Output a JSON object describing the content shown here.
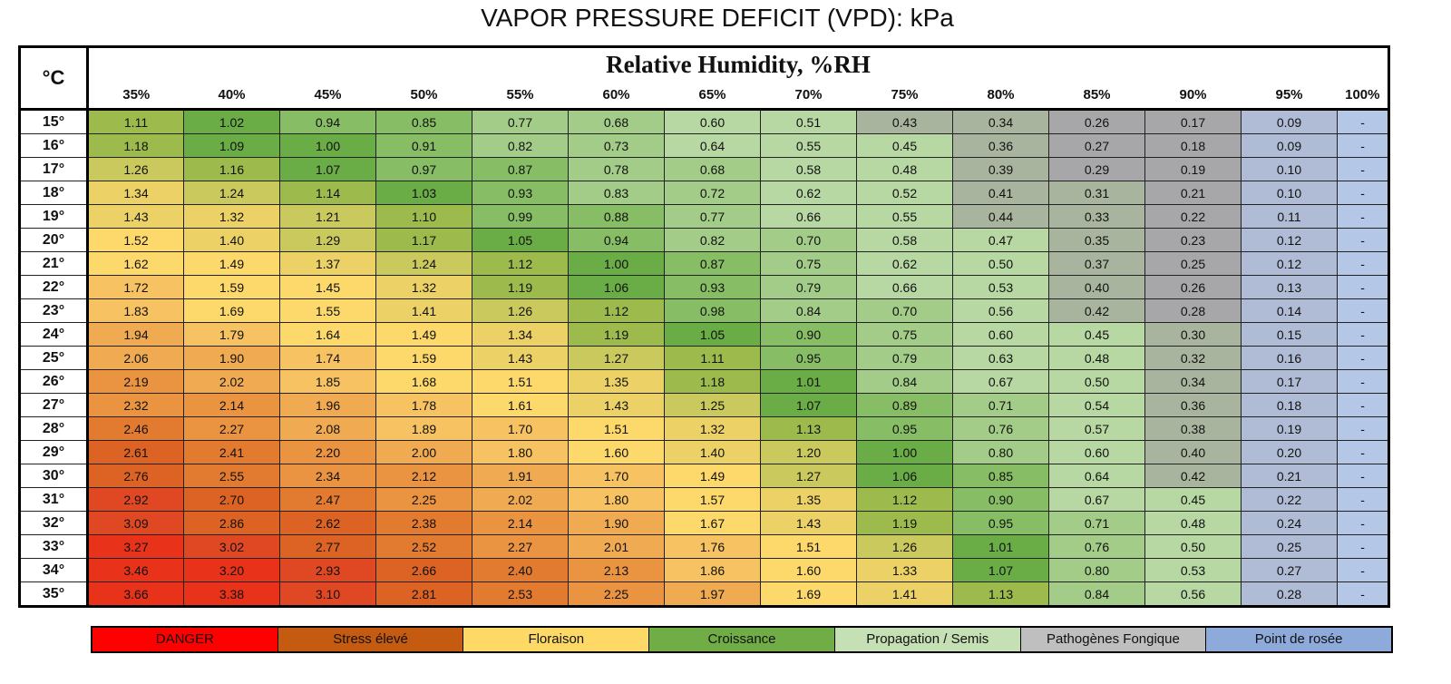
{
  "title": "VAPOR PRESSURE DEFICIT (VPD): kPa",
  "table": {
    "corner": "°C",
    "header": "Relative Humidity, %RH",
    "columns": [
      "35%",
      "40%",
      "45%",
      "50%",
      "55%",
      "60%",
      "65%",
      "70%",
      "75%",
      "80%",
      "85%",
      "90%",
      "95%",
      "100%"
    ],
    "rows": [
      {
        "label": "15°",
        "cells": [
          "1.11",
          "1.02",
          "0.94",
          "0.85",
          "0.77",
          "0.68",
          "0.60",
          "0.51",
          "0.43",
          "0.34",
          "0.26",
          "0.17",
          "0.09",
          "-"
        ],
        "colors": [
          "#9dbb4d",
          "#6aac46",
          "#87bd64",
          "#87bd64",
          "#a2cc88",
          "#a2cc88",
          "#b7d7a3",
          "#b7d7a3",
          "#a9b49e",
          "#a9b49e",
          "#a7a7aa",
          "#a7a7aa",
          "#b0bcd5",
          "#b4c7e7"
        ]
      },
      {
        "label": "16°",
        "cells": [
          "1.18",
          "1.09",
          "1.00",
          "0.91",
          "0.82",
          "0.73",
          "0.64",
          "0.55",
          "0.45",
          "0.36",
          "0.27",
          "0.18",
          "0.09",
          "-"
        ],
        "colors": [
          "#9dbb4d",
          "#6aac46",
          "#6aac46",
          "#87bd64",
          "#a2cc88",
          "#a2cc88",
          "#b7d7a3",
          "#b7d7a3",
          "#b7d7a3",
          "#a9b49e",
          "#a7a7aa",
          "#a7a7aa",
          "#b0bcd5",
          "#b4c7e7"
        ]
      },
      {
        "label": "17°",
        "cells": [
          "1.26",
          "1.16",
          "1.07",
          "0.97",
          "0.87",
          "0.78",
          "0.68",
          "0.58",
          "0.48",
          "0.39",
          "0.29",
          "0.19",
          "0.10",
          "-"
        ],
        "colors": [
          "#cac95d",
          "#9dbb4d",
          "#6aac46",
          "#87bd64",
          "#87bd64",
          "#a2cc88",
          "#a2cc88",
          "#b7d7a3",
          "#b7d7a3",
          "#a9b49e",
          "#a7a7aa",
          "#a7a7aa",
          "#b0bcd5",
          "#b4c7e7"
        ]
      },
      {
        "label": "18°",
        "cells": [
          "1.34",
          "1.24",
          "1.14",
          "1.03",
          "0.93",
          "0.83",
          "0.72",
          "0.62",
          "0.52",
          "0.41",
          "0.31",
          "0.21",
          "0.10",
          "-"
        ],
        "colors": [
          "#ecd266",
          "#cac95d",
          "#9dbb4d",
          "#6aac46",
          "#87bd64",
          "#a2cc88",
          "#a2cc88",
          "#b7d7a3",
          "#b7d7a3",
          "#a9b49e",
          "#a9b49e",
          "#a7a7aa",
          "#b0bcd5",
          "#b4c7e7"
        ]
      },
      {
        "label": "19°",
        "cells": [
          "1.43",
          "1.32",
          "1.21",
          "1.10",
          "0.99",
          "0.88",
          "0.77",
          "0.66",
          "0.55",
          "0.44",
          "0.33",
          "0.22",
          "0.11",
          "-"
        ],
        "colors": [
          "#ecd266",
          "#ecd266",
          "#cac95d",
          "#9dbb4d",
          "#87bd64",
          "#87bd64",
          "#a2cc88",
          "#b7d7a3",
          "#b7d7a3",
          "#a9b49e",
          "#a9b49e",
          "#a7a7aa",
          "#b0bcd5",
          "#b4c7e7"
        ]
      },
      {
        "label": "20°",
        "cells": [
          "1.52",
          "1.40",
          "1.29",
          "1.17",
          "1.05",
          "0.94",
          "0.82",
          "0.70",
          "0.58",
          "0.47",
          "0.35",
          "0.23",
          "0.12",
          "-"
        ],
        "colors": [
          "#fdd96c",
          "#ecd266",
          "#cac95d",
          "#9dbb4d",
          "#6aac46",
          "#87bd64",
          "#a2cc88",
          "#a2cc88",
          "#b7d7a3",
          "#b7d7a3",
          "#a9b49e",
          "#a7a7aa",
          "#b0bcd5",
          "#b4c7e7"
        ]
      },
      {
        "label": "21°",
        "cells": [
          "1.62",
          "1.49",
          "1.37",
          "1.24",
          "1.12",
          "1.00",
          "0.87",
          "0.75",
          "0.62",
          "0.50",
          "0.37",
          "0.25",
          "0.12",
          "-"
        ],
        "colors": [
          "#fdd96c",
          "#fdd96c",
          "#ecd266",
          "#cac95d",
          "#9dbb4d",
          "#6aac46",
          "#87bd64",
          "#a2cc88",
          "#b7d7a3",
          "#b7d7a3",
          "#a9b49e",
          "#a7a7aa",
          "#b0bcd5",
          "#b4c7e7"
        ]
      },
      {
        "label": "22°",
        "cells": [
          "1.72",
          "1.59",
          "1.45",
          "1.32",
          "1.19",
          "1.06",
          "0.93",
          "0.79",
          "0.66",
          "0.53",
          "0.40",
          "0.26",
          "0.13",
          "-"
        ],
        "colors": [
          "#f6c262",
          "#fdd96c",
          "#fdd96c",
          "#ecd266",
          "#9dbb4d",
          "#6aac46",
          "#87bd64",
          "#a2cc88",
          "#b7d7a3",
          "#b7d7a3",
          "#a9b49e",
          "#a7a7aa",
          "#b0bcd5",
          "#b4c7e7"
        ]
      },
      {
        "label": "23°",
        "cells": [
          "1.83",
          "1.69",
          "1.55",
          "1.41",
          "1.26",
          "1.12",
          "0.98",
          "0.84",
          "0.70",
          "0.56",
          "0.42",
          "0.28",
          "0.14",
          "-"
        ],
        "colors": [
          "#f6c262",
          "#fdd96c",
          "#fdd96c",
          "#ecd266",
          "#cac95d",
          "#9dbb4d",
          "#87bd64",
          "#a2cc88",
          "#a2cc88",
          "#b7d7a3",
          "#a9b49e",
          "#a7a7aa",
          "#b0bcd5",
          "#b4c7e7"
        ]
      },
      {
        "label": "24°",
        "cells": [
          "1.94",
          "1.79",
          "1.64",
          "1.49",
          "1.34",
          "1.19",
          "1.05",
          "0.90",
          "0.75",
          "0.60",
          "0.45",
          "0.30",
          "0.15",
          "-"
        ],
        "colors": [
          "#f0ab52",
          "#f6c262",
          "#fdd96c",
          "#fdd96c",
          "#ecd266",
          "#9dbb4d",
          "#6aac46",
          "#87bd64",
          "#a2cc88",
          "#b7d7a3",
          "#b7d7a3",
          "#a9b49e",
          "#b0bcd5",
          "#b4c7e7"
        ]
      },
      {
        "label": "25°",
        "cells": [
          "2.06",
          "1.90",
          "1.74",
          "1.59",
          "1.43",
          "1.27",
          "1.11",
          "0.95",
          "0.79",
          "0.63",
          "0.48",
          "0.32",
          "0.16",
          "-"
        ],
        "colors": [
          "#f0ab52",
          "#f0ab52",
          "#f6c262",
          "#fdd96c",
          "#ecd266",
          "#cac95d",
          "#9dbb4d",
          "#87bd64",
          "#a2cc88",
          "#b7d7a3",
          "#b7d7a3",
          "#a9b49e",
          "#b0bcd5",
          "#b4c7e7"
        ]
      },
      {
        "label": "26°",
        "cells": [
          "2.19",
          "2.02",
          "1.85",
          "1.68",
          "1.51",
          "1.35",
          "1.18",
          "1.01",
          "0.84",
          "0.67",
          "0.50",
          "0.34",
          "0.17",
          "-"
        ],
        "colors": [
          "#ea9340",
          "#f0ab52",
          "#f6c262",
          "#fdd96c",
          "#fdd96c",
          "#ecd266",
          "#9dbb4d",
          "#6aac46",
          "#a2cc88",
          "#b7d7a3",
          "#b7d7a3",
          "#a9b49e",
          "#b0bcd5",
          "#b4c7e7"
        ]
      },
      {
        "label": "27°",
        "cells": [
          "2.32",
          "2.14",
          "1.96",
          "1.78",
          "1.61",
          "1.43",
          "1.25",
          "1.07",
          "0.89",
          "0.71",
          "0.54",
          "0.36",
          "0.18",
          "-"
        ],
        "colors": [
          "#ea9340",
          "#ea9340",
          "#f0ab52",
          "#f6c262",
          "#fdd96c",
          "#ecd266",
          "#cac95d",
          "#6aac46",
          "#87bd64",
          "#a2cc88",
          "#b7d7a3",
          "#a9b49e",
          "#b0bcd5",
          "#b4c7e7"
        ]
      },
      {
        "label": "28°",
        "cells": [
          "2.46",
          "2.27",
          "2.08",
          "1.89",
          "1.70",
          "1.51",
          "1.32",
          "1.13",
          "0.95",
          "0.76",
          "0.57",
          "0.38",
          "0.19",
          "-"
        ],
        "colors": [
          "#e27b30",
          "#ea9340",
          "#f0ab52",
          "#f6c262",
          "#f6c262",
          "#fdd96c",
          "#ecd266",
          "#9dbb4d",
          "#87bd64",
          "#a2cc88",
          "#b7d7a3",
          "#a9b49e",
          "#b0bcd5",
          "#b4c7e7"
        ]
      },
      {
        "label": "29°",
        "cells": [
          "2.61",
          "2.41",
          "2.20",
          "2.00",
          "1.80",
          "1.60",
          "1.40",
          "1.20",
          "1.00",
          "0.80",
          "0.60",
          "0.40",
          "0.20",
          "-"
        ],
        "colors": [
          "#dc6323",
          "#e27b30",
          "#ea9340",
          "#f0ab52",
          "#f6c262",
          "#fdd96c",
          "#ecd266",
          "#cac95d",
          "#6aac46",
          "#a2cc88",
          "#b7d7a3",
          "#a9b49e",
          "#b0bcd5",
          "#b4c7e7"
        ]
      },
      {
        "label": "30°",
        "cells": [
          "2.76",
          "2.55",
          "2.34",
          "2.12",
          "1.91",
          "1.70",
          "1.49",
          "1.27",
          "1.06",
          "0.85",
          "0.64",
          "0.42",
          "0.21",
          "-"
        ],
        "colors": [
          "#dc6323",
          "#e27b30",
          "#ea9340",
          "#ea9340",
          "#f0ab52",
          "#f6c262",
          "#fdd96c",
          "#cac95d",
          "#6aac46",
          "#87bd64",
          "#b7d7a3",
          "#a9b49e",
          "#b0bcd5",
          "#b4c7e7"
        ]
      },
      {
        "label": "31°",
        "cells": [
          "2.92",
          "2.70",
          "2.47",
          "2.25",
          "2.02",
          "1.80",
          "1.57",
          "1.35",
          "1.12",
          "0.90",
          "0.67",
          "0.45",
          "0.22",
          "-"
        ],
        "colors": [
          "#e04823",
          "#dc6323",
          "#e27b30",
          "#ea9340",
          "#f0ab52",
          "#f6c262",
          "#fdd96c",
          "#ecd266",
          "#9dbb4d",
          "#87bd64",
          "#b7d7a3",
          "#b7d7a3",
          "#b0bcd5",
          "#b4c7e7"
        ]
      },
      {
        "label": "32°",
        "cells": [
          "3.09",
          "2.86",
          "2.62",
          "2.38",
          "2.14",
          "1.90",
          "1.67",
          "1.43",
          "1.19",
          "0.95",
          "0.71",
          "0.48",
          "0.24",
          "-"
        ],
        "colors": [
          "#e04823",
          "#dc6323",
          "#dc6323",
          "#e27b30",
          "#ea9340",
          "#f0ab52",
          "#fdd96c",
          "#ecd266",
          "#9dbb4d",
          "#87bd64",
          "#a2cc88",
          "#b7d7a3",
          "#b0bcd5",
          "#b4c7e7"
        ]
      },
      {
        "label": "33°",
        "cells": [
          "3.27",
          "3.02",
          "2.77",
          "2.52",
          "2.27",
          "2.01",
          "1.76",
          "1.51",
          "1.26",
          "1.01",
          "0.76",
          "0.50",
          "0.25",
          "-"
        ],
        "colors": [
          "#e8321a",
          "#e04823",
          "#dc6323",
          "#e27b30",
          "#ea9340",
          "#f0ab52",
          "#f6c262",
          "#fdd96c",
          "#cac95d",
          "#6aac46",
          "#a2cc88",
          "#b7d7a3",
          "#b0bcd5",
          "#b4c7e7"
        ]
      },
      {
        "label": "34°",
        "cells": [
          "3.46",
          "3.20",
          "2.93",
          "2.66",
          "2.40",
          "2.13",
          "1.86",
          "1.60",
          "1.33",
          "1.07",
          "0.80",
          "0.53",
          "0.27",
          "-"
        ],
        "colors": [
          "#e8321a",
          "#e8321a",
          "#e04823",
          "#dc6323",
          "#e27b30",
          "#ea9340",
          "#f6c262",
          "#fdd96c",
          "#ecd266",
          "#6aac46",
          "#a2cc88",
          "#b7d7a3",
          "#b0bcd5",
          "#b4c7e7"
        ]
      },
      {
        "label": "35°",
        "cells": [
          "3.66",
          "3.38",
          "3.10",
          "2.81",
          "2.53",
          "2.25",
          "1.97",
          "1.69",
          "1.41",
          "1.13",
          "0.84",
          "0.56",
          "0.28",
          "-"
        ],
        "colors": [
          "#e8321a",
          "#e8321a",
          "#e04823",
          "#dc6323",
          "#e27b30",
          "#ea9340",
          "#f0ab52",
          "#fdd96c",
          "#ecd266",
          "#9dbb4d",
          "#a2cc88",
          "#b7d7a3",
          "#b0bcd5",
          "#b4c7e7"
        ]
      }
    ]
  },
  "legend": [
    {
      "label": "DANGER",
      "color": "#ff0000"
    },
    {
      "label": "Stress élevé",
      "color": "#c55a11"
    },
    {
      "label": "Floraison",
      "color": "#ffd966"
    },
    {
      "label": "Croissance",
      "color": "#70ad47"
    },
    {
      "label": "Propagation / Semis",
      "color": "#c5e0b4"
    },
    {
      "label": "Pathogènes Fongique",
      "color": "#bfbfbf"
    },
    {
      "label": "Point de rosée",
      "color": "#8eaadb"
    }
  ]
}
